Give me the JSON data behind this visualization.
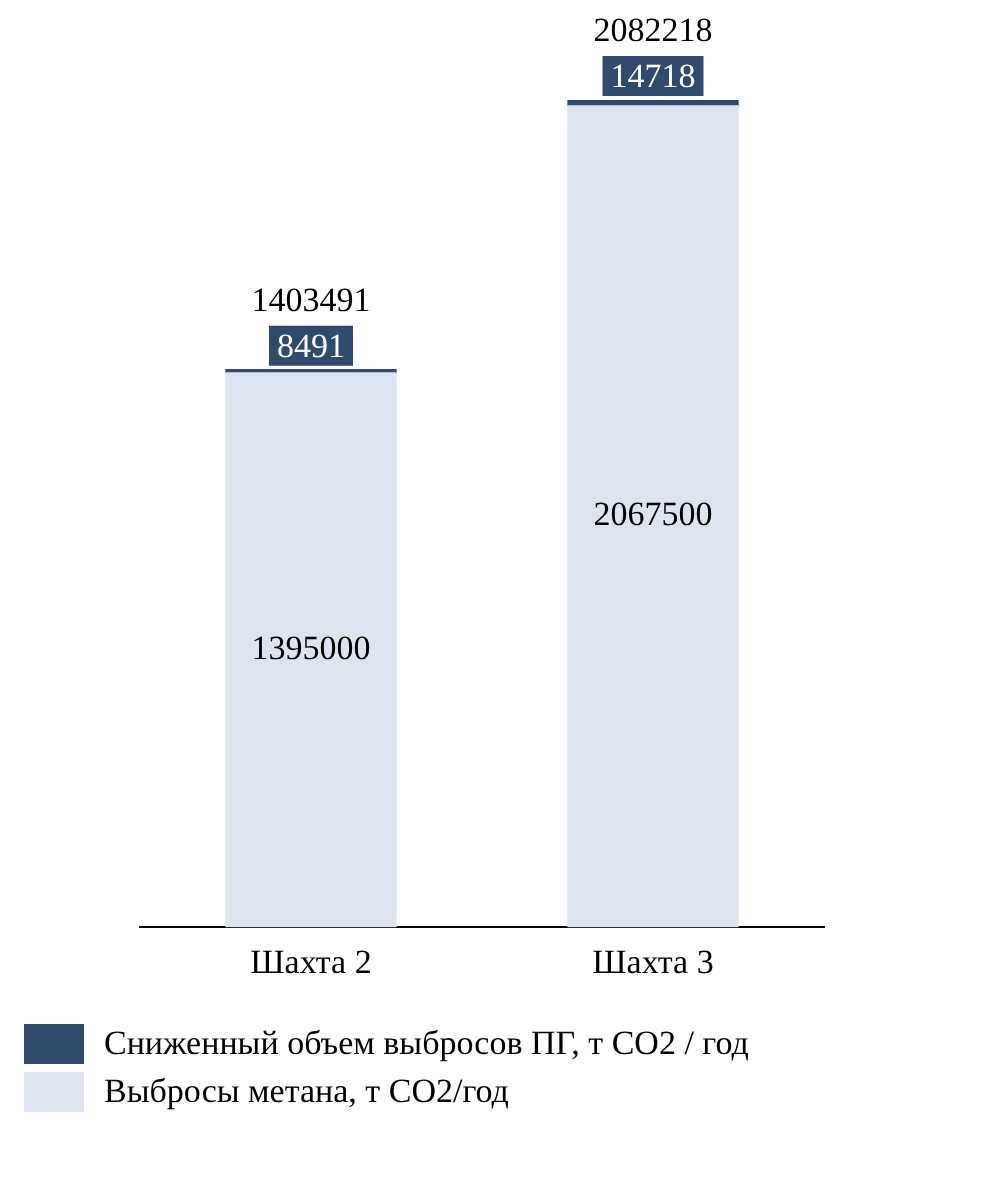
{
  "chart_data": {
    "type": "bar",
    "stacked": true,
    "categories": [
      "Шахта 2",
      "Шахта 3"
    ],
    "series": [
      {
        "name": "Выбросы метана, т CO2/год",
        "color": "#dde4f0",
        "values": [
          1395000,
          2067500
        ]
      },
      {
        "name": "Сниженный объем выбросов ПГ, т CO2 / год",
        "color": "#2f4a6c",
        "values": [
          8491,
          14718
        ]
      }
    ],
    "data_labels": true,
    "totals": [
      "1403491",
      "2082218"
    ],
    "legend": "bottom",
    "grid": false
  }
}
